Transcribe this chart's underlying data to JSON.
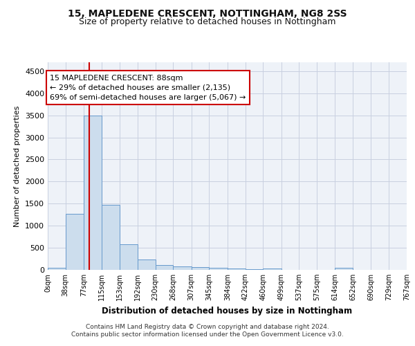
{
  "title1": "15, MAPLEDENE CRESCENT, NOTTINGHAM, NG8 2SS",
  "title2": "Size of property relative to detached houses in Nottingham",
  "xlabel": "Distribution of detached houses by size in Nottingham",
  "ylabel": "Number of detached properties",
  "annotation_text": "15 MAPLEDENE CRESCENT: 88sqm\n← 29% of detached houses are smaller (2,135)\n69% of semi-detached houses are larger (5,067) →",
  "bin_edges": [
    0,
    38,
    77,
    115,
    153,
    192,
    230,
    268,
    307,
    345,
    384,
    422,
    460,
    499,
    537,
    575,
    614,
    652,
    690,
    729,
    767
  ],
  "bar_heights": [
    40,
    1275,
    3500,
    1480,
    575,
    240,
    115,
    85,
    55,
    50,
    30,
    20,
    30,
    0,
    0,
    0,
    45,
    0,
    0,
    0
  ],
  "bar_color": "#ccdded",
  "bar_edge_color": "#6699cc",
  "vline_color": "#cc0000",
  "vline_x": 88,
  "ylim": [
    0,
    4700
  ],
  "yticks": [
    0,
    500,
    1000,
    1500,
    2000,
    2500,
    3000,
    3500,
    4000,
    4500
  ],
  "footer_text": "Contains HM Land Registry data © Crown copyright and database right 2024.\nContains public sector information licensed under the Open Government Licence v3.0.",
  "annotation_box_color": "#ffffff",
  "annotation_box_edge": "#cc0000",
  "bg_color": "#eef2f8",
  "grid_color": "#c8cfe0"
}
